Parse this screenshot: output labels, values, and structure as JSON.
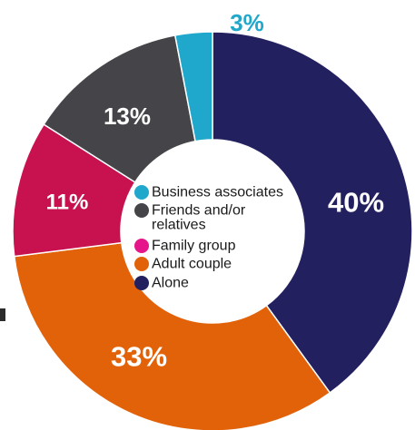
{
  "chart_data": {
    "type": "pie",
    "title": "",
    "series": [
      {
        "name": "Alone",
        "value": 40,
        "label": "40%",
        "color": "#23205f",
        "label_color": "#ffffff"
      },
      {
        "name": "Adult couple",
        "value": 33,
        "label": "33%",
        "color": "#e2620a",
        "label_color": "#ffffff"
      },
      {
        "name": "Family group",
        "value": 11,
        "label": "11%",
        "color": "#c8124f",
        "label_color": "#ffffff"
      },
      {
        "name": "Friends and/or relatives",
        "value": 13,
        "label": "13%",
        "color": "#454449",
        "label_color": "#ffffff"
      },
      {
        "name": "Business associates",
        "value": 3,
        "label": "3%",
        "color": "#20a8cc",
        "label_color": "#20a8cc"
      }
    ],
    "legend": {
      "position": "center",
      "items": [
        {
          "label_lines": [
            "Business associates"
          ],
          "color": "#20a8cc"
        },
        {
          "label_lines": [
            "Friends and/or",
            "relatives"
          ],
          "color": "#454449"
        },
        {
          "label_lines": [
            "Family group"
          ],
          "color": "#e5168a"
        },
        {
          "label_lines": [
            "Adult couple"
          ],
          "color": "#e2620a"
        },
        {
          "label_lines": [
            "Alone"
          ],
          "color": "#23205f"
        }
      ]
    }
  }
}
